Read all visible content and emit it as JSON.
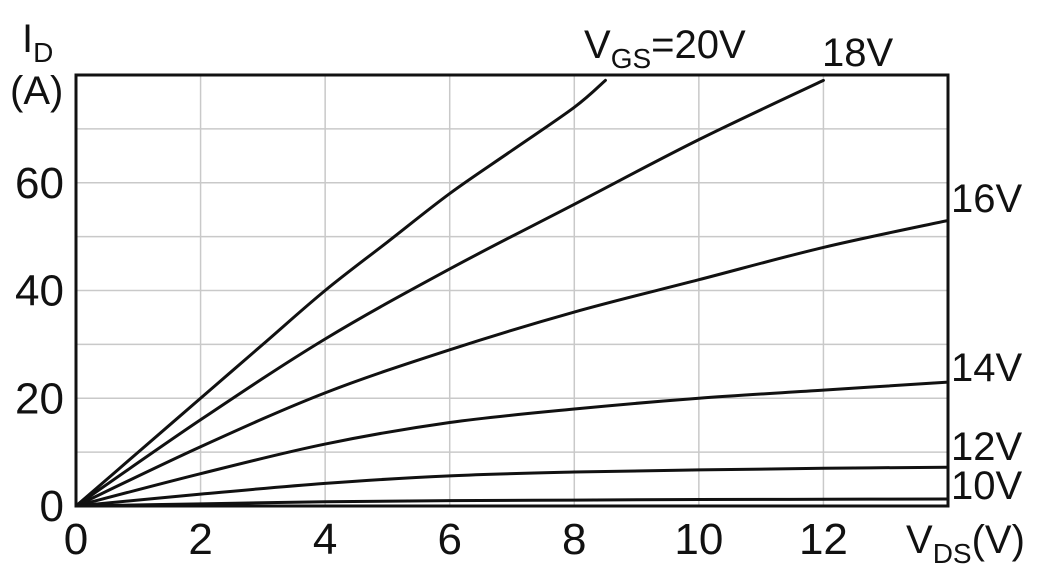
{
  "chart_data": {
    "type": "line",
    "xlabel": {
      "main": "V",
      "sub": "DS",
      "unit": "(V)"
    },
    "ylabel": {
      "main": "I",
      "sub": "D",
      "unit": "(A)"
    },
    "xlim": [
      0,
      14
    ],
    "ylim": [
      0,
      80
    ],
    "x_ticks": [
      0,
      2,
      4,
      6,
      8,
      10,
      12
    ],
    "y_ticks": [
      0,
      20,
      40,
      60
    ],
    "x_grid": [
      0,
      2,
      4,
      6,
      8,
      10,
      12,
      14
    ],
    "y_grid": [
      0,
      10,
      20,
      30,
      40,
      50,
      60,
      70,
      80
    ],
    "grid": true,
    "series": [
      {
        "name": "20V",
        "label_prefix": "V",
        "label_sub": "GS",
        "label_suffix": "=20V",
        "x": [
          0,
          1,
          2,
          3,
          4,
          5,
          6,
          7,
          8,
          8.5
        ],
        "y": [
          0,
          10,
          20,
          30,
          40,
          49,
          58,
          66,
          74,
          79
        ]
      },
      {
        "name": "18V",
        "x": [
          0,
          2,
          4,
          6,
          8,
          10,
          12
        ],
        "y": [
          0,
          16,
          31,
          44,
          56,
          68,
          79
        ]
      },
      {
        "name": "16V",
        "x": [
          0,
          2,
          4,
          6,
          8,
          10,
          12,
          14
        ],
        "y": [
          0,
          11,
          21,
          29,
          36,
          42,
          48,
          53
        ]
      },
      {
        "name": "14V",
        "x": [
          0,
          2,
          4,
          6,
          8,
          10,
          12,
          14
        ],
        "y": [
          0,
          6,
          11.5,
          15.5,
          18,
          20,
          21.5,
          23
        ]
      },
      {
        "name": "12V",
        "x": [
          0,
          2,
          4,
          6,
          8,
          10,
          12,
          14
        ],
        "y": [
          0,
          2.2,
          4.2,
          5.6,
          6.3,
          6.7,
          7,
          7.2
        ]
      },
      {
        "name": "10V",
        "x": [
          0,
          2,
          4,
          6,
          8,
          10,
          12,
          14
        ],
        "y": [
          0,
          0.4,
          0.8,
          1.0,
          1.1,
          1.2,
          1.25,
          1.3
        ]
      }
    ]
  }
}
